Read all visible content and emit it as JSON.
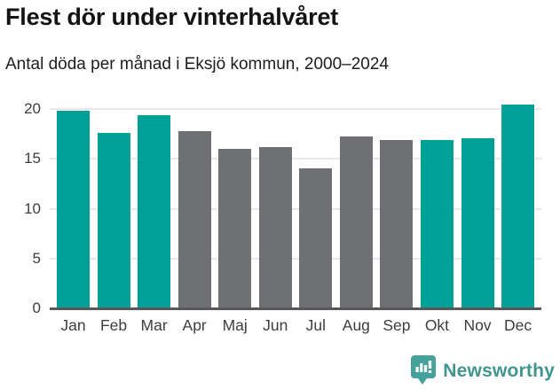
{
  "header": {
    "title": "Flest dör under vinterhalvåret",
    "subtitle": "Antal döda per månad i Eksjö kommun, 2000–2024"
  },
  "chart_data": {
    "type": "bar",
    "title": "Flest dör under vinterhalvåret",
    "subtitle": "Antal döda per månad i Eksjö kommun, 2000–2024",
    "categories": [
      "Jan",
      "Feb",
      "Mar",
      "Apr",
      "Maj",
      "Jun",
      "Jul",
      "Aug",
      "Sep",
      "Okt",
      "Nov",
      "Dec"
    ],
    "values": [
      19.8,
      17.6,
      19.4,
      17.8,
      16.0,
      16.2,
      14.1,
      17.3,
      16.9,
      16.9,
      17.1,
      20.5
    ],
    "highlighted": [
      true,
      true,
      true,
      false,
      false,
      false,
      false,
      false,
      false,
      true,
      true,
      true
    ],
    "xlabel": "",
    "ylabel": "",
    "yticks": [
      0,
      5,
      10,
      15,
      20
    ],
    "ylim": [
      0,
      21.2
    ],
    "grid": "horizontal",
    "legend": "none",
    "colors": {
      "highlight": "#00a096",
      "muted": "#6e7073",
      "axis": "#58585a",
      "gridline": "#e8e8e8",
      "tick_text": "#3d3d3d"
    }
  },
  "footer": {
    "brand": "Newsworthy",
    "brand_color": "#40968f",
    "logo_icon": "speech-bubble-bar-chart-icon"
  }
}
